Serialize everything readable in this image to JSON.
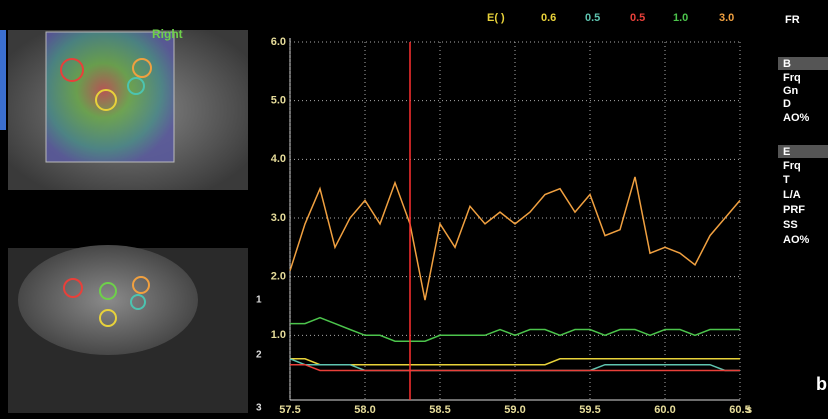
{
  "chart_data": {
    "type": "line",
    "legend_title": "E( )",
    "x_unit": "s",
    "x": [
      57.5,
      57.6,
      57.7,
      57.8,
      57.9,
      58.0,
      58.1,
      58.2,
      58.3,
      58.4,
      58.5,
      58.6,
      58.7,
      58.8,
      58.9,
      59.0,
      59.1,
      59.2,
      59.3,
      59.4,
      59.5,
      59.6,
      59.7,
      59.8,
      59.9,
      60.0,
      60.1,
      60.2,
      60.3,
      60.4,
      60.5
    ],
    "series": [
      {
        "name": "0.6",
        "color": "#e8d23a",
        "values": [
          0.6,
          0.6,
          0.5,
          0.5,
          0.5,
          0.5,
          0.5,
          0.5,
          0.5,
          0.5,
          0.5,
          0.5,
          0.5,
          0.5,
          0.5,
          0.5,
          0.5,
          0.5,
          0.6,
          0.6,
          0.6,
          0.6,
          0.6,
          0.6,
          0.6,
          0.6,
          0.6,
          0.6,
          0.6,
          0.6,
          0.6
        ]
      },
      {
        "name": "0.5",
        "color": "#5fc4b0",
        "values": [
          0.6,
          0.5,
          0.5,
          0.5,
          0.5,
          0.4,
          0.4,
          0.4,
          0.4,
          0.4,
          0.4,
          0.4,
          0.4,
          0.4,
          0.4,
          0.4,
          0.4,
          0.4,
          0.4,
          0.4,
          0.4,
          0.5,
          0.5,
          0.5,
          0.5,
          0.5,
          0.5,
          0.5,
          0.5,
          0.4,
          0.4
        ]
      },
      {
        "name": "0.5",
        "color": "#e8403a",
        "values": [
          0.5,
          0.5,
          0.4,
          0.4,
          0.4,
          0.4,
          0.4,
          0.4,
          0.4,
          0.4,
          0.4,
          0.4,
          0.4,
          0.4,
          0.4,
          0.4,
          0.4,
          0.4,
          0.4,
          0.4,
          0.4,
          0.4,
          0.4,
          0.4,
          0.4,
          0.4,
          0.4,
          0.4,
          0.4,
          0.4,
          0.4
        ]
      },
      {
        "name": "1.0",
        "color": "#4cc44c",
        "values": [
          1.2,
          1.2,
          1.3,
          1.2,
          1.1,
          1.0,
          1.0,
          0.9,
          0.9,
          0.9,
          1.0,
          1.0,
          1.0,
          1.0,
          1.1,
          1.0,
          1.1,
          1.1,
          1.0,
          1.1,
          1.1,
          1.0,
          1.1,
          1.1,
          1.0,
          1.1,
          1.1,
          1.0,
          1.1,
          1.1,
          1.1
        ]
      },
      {
        "name": "3.0",
        "color": "#f0a040",
        "values": [
          2.1,
          2.9,
          3.5,
          2.5,
          3.0,
          3.3,
          2.9,
          3.6,
          2.9,
          1.6,
          2.9,
          2.5,
          3.2,
          2.9,
          3.1,
          2.9,
          3.1,
          3.4,
          3.5,
          3.1,
          3.4,
          2.7,
          2.8,
          3.7,
          2.4,
          2.5,
          2.4,
          2.2,
          2.7,
          3.0,
          3.3
        ]
      }
    ],
    "cursor_x": 58.3,
    "cursor_color": "#ff3030",
    "xlim": [
      57.5,
      60.5
    ],
    "xticks": [
      57.5,
      {
        "value": 58,
        "label": "58.0"
      },
      58.5,
      {
        "value": 59,
        "label": "59.0"
      },
      59.5,
      {
        "value": 60,
        "label": "60.0"
      },
      60.5
    ],
    "ylim": [
      0,
      6
    ],
    "yticks": [
      {
        "value": 1,
        "label": "1.0"
      },
      {
        "value": 2,
        "label": "2.0"
      },
      {
        "value": 3,
        "label": "3.0"
      },
      {
        "value": 4,
        "label": "4.0"
      },
      {
        "value": 5,
        "label": "5.0"
      },
      {
        "value": 6,
        "label": "6.0"
      }
    ],
    "grid": true
  },
  "image_labels": {
    "top_label": "Right",
    "depth_marks": [
      "1",
      "2",
      "3"
    ]
  },
  "side_panel": {
    "fr": "FR",
    "b_section": [
      "B",
      "Frq",
      "Gn",
      "D",
      "AO%"
    ],
    "e_section": [
      "E",
      "Frq",
      "T",
      "L/A",
      "PRF",
      "SS",
      "AO%"
    ]
  },
  "panel_letter": "b"
}
